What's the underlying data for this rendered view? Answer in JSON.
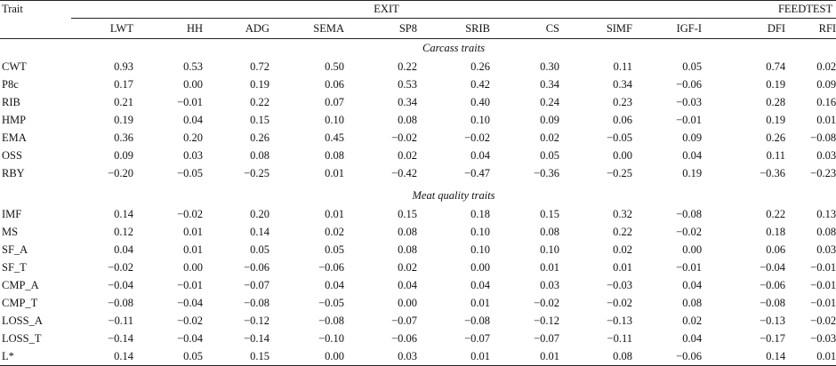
{
  "header": {
    "trait_label": "Trait",
    "exit_label": "EXIT",
    "feedtest_label": "FEEDTEST",
    "columns": [
      "LWT",
      "HH",
      "ADG",
      "SEMA",
      "SP8",
      "SRIB",
      "CS",
      "SIMF",
      "IGF-I",
      "DFI",
      "RFI"
    ]
  },
  "sections": [
    {
      "title": "Carcass traits",
      "rows": [
        {
          "trait": "CWT",
          "values": [
            "0.93",
            "0.53",
            "0.72",
            "0.50",
            "0.22",
            "0.26",
            "0.30",
            "0.11",
            "0.05",
            "0.74",
            "0.02"
          ]
        },
        {
          "trait": "P8c",
          "values": [
            "0.17",
            "0.00",
            "0.19",
            "0.06",
            "0.53",
            "0.42",
            "0.34",
            "0.34",
            "−0.06",
            "0.19",
            "0.09"
          ]
        },
        {
          "trait": "RIB",
          "values": [
            "0.21",
            "−0.01",
            "0.22",
            "0.07",
            "0.34",
            "0.40",
            "0.24",
            "0.23",
            "−0.03",
            "0.28",
            "0.16"
          ]
        },
        {
          "trait": "HMP",
          "values": [
            "0.19",
            "0.04",
            "0.15",
            "0.10",
            "0.08",
            "0.10",
            "0.09",
            "0.06",
            "−0.01",
            "0.19",
            "0.01"
          ]
        },
        {
          "trait": "EMA",
          "values": [
            "0.36",
            "0.20",
            "0.26",
            "0.45",
            "−0.02",
            "−0.02",
            "0.02",
            "−0.05",
            "0.09",
            "0.26",
            "−0.08"
          ]
        },
        {
          "trait": "OSS",
          "values": [
            "0.09",
            "0.03",
            "0.08",
            "0.08",
            "0.02",
            "0.04",
            "0.05",
            "0.00",
            "0.04",
            "0.11",
            "0.03"
          ]
        },
        {
          "trait": "RBY",
          "values": [
            "−0.20",
            "−0.05",
            "−0.25",
            "0.01",
            "−0.42",
            "−0.47",
            "−0.36",
            "−0.25",
            "0.19",
            "−0.36",
            "−0.23"
          ]
        }
      ]
    },
    {
      "title": "Meat quality traits",
      "rows": [
        {
          "trait": "IMF",
          "values": [
            "0.14",
            "−0.02",
            "0.20",
            "0.01",
            "0.15",
            "0.18",
            "0.15",
            "0.32",
            "−0.08",
            "0.22",
            "0.13"
          ]
        },
        {
          "trait": "MS",
          "values": [
            "0.12",
            "0.01",
            "0.14",
            "0.02",
            "0.08",
            "0.10",
            "0.08",
            "0.22",
            "−0.02",
            "0.18",
            "0.08"
          ]
        },
        {
          "trait": "SF_A",
          "values": [
            "0.04",
            "0.01",
            "0.05",
            "0.05",
            "0.08",
            "0.10",
            "0.10",
            "0.02",
            "0.00",
            "0.06",
            "0.03"
          ]
        },
        {
          "trait": "SF_T",
          "values": [
            "−0.02",
            "0.00",
            "−0.06",
            "−0.06",
            "0.02",
            "0.00",
            "0.01",
            "0.01",
            "−0.01",
            "−0.04",
            "−0.01"
          ]
        },
        {
          "trait": "CMP_A",
          "values": [
            "−0.04",
            "−0.01",
            "−0.07",
            "0.04",
            "0.04",
            "0.04",
            "0.03",
            "−0.03",
            "0.04",
            "−0.06",
            "−0.01"
          ]
        },
        {
          "trait": "CMP_T",
          "values": [
            "−0.08",
            "−0.04",
            "−0.08",
            "−0.05",
            "0.00",
            "0.01",
            "−0.02",
            "−0.02",
            "0.08",
            "−0.08",
            "−0.01"
          ]
        },
        {
          "trait": "LOSS_A",
          "values": [
            "−0.11",
            "−0.02",
            "−0.12",
            "−0.08",
            "−0.07",
            "−0.08",
            "−0.12",
            "−0.13",
            "0.02",
            "−0.13",
            "−0.02"
          ]
        },
        {
          "trait": "LOSS_T",
          "values": [
            "−0.14",
            "−0.04",
            "−0.14",
            "−0.10",
            "−0.06",
            "−0.07",
            "−0.07",
            "−0.11",
            "0.04",
            "−0.17",
            "−0.03"
          ]
        },
        {
          "trait": "L*",
          "values": [
            "0.14",
            "0.05",
            "0.15",
            "0.00",
            "0.03",
            "0.01",
            "0.01",
            "0.08",
            "−0.06",
            "0.14",
            "0.01"
          ]
        }
      ]
    }
  ]
}
